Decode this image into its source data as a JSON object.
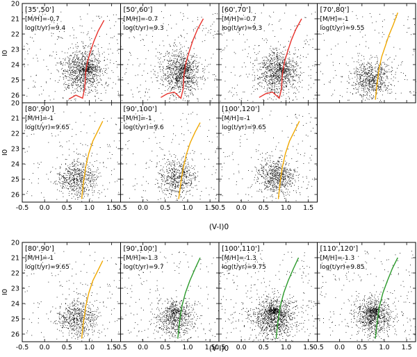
{
  "chart_data": [
    {
      "type": "scatter",
      "group": "top",
      "x_range": [
        -0.5,
        1.7
      ],
      "y_range": [
        26.5,
        20.0
      ],
      "xlabel": "(V-I)0",
      "ylabel": "I0",
      "x_ticks": [
        "-0.5",
        "0.0",
        "0.5",
        "1.0",
        "1.5"
      ],
      "y_ticks": [
        "20",
        "21",
        "22",
        "23",
        "24",
        "25",
        "26"
      ],
      "panels": [
        {
          "id": "p35-50",
          "label_range": "[35',50']",
          "label_mh": "[M/H]=-0.7",
          "label_age": "log(t/yr)=9.4",
          "isochrone_color": "#e8302a",
          "isochrone": [
            [
              0.55,
              26.25
            ],
            [
              0.7,
              26.0
            ],
            [
              0.85,
              26.2
            ],
            [
              0.9,
              25.5
            ],
            [
              0.92,
              24.5
            ],
            [
              0.96,
              23.8
            ],
            [
              1.02,
              23.2
            ],
            [
              1.1,
              22.5
            ],
            [
              1.2,
              21.8
            ],
            [
              1.33,
              21.1
            ]
          ],
          "cloud": {
            "center": [
              0.85,
              24.4
            ],
            "spread": [
              0.4,
              1.2
            ],
            "count": 900,
            "seed": 11
          },
          "clump": {
            "center": [
              0.95,
              24.3
            ],
            "spread": [
              0.07,
              0.13
            ],
            "count": 90
          }
        },
        {
          "id": "p50-60",
          "label_range": "[50',60']",
          "label_mh": "[M/H]=-0.7",
          "label_age": "log(t/yr)=9.3",
          "isochrone_color": "#e8302a",
          "isochrone": [
            [
              0.4,
              26.15
            ],
            [
              0.55,
              25.9
            ],
            [
              0.7,
              25.8
            ],
            [
              0.85,
              26.2
            ],
            [
              0.9,
              25.6
            ],
            [
              0.92,
              24.6
            ],
            [
              0.97,
              23.8
            ],
            [
              1.04,
              23.1
            ],
            [
              1.12,
              22.4
            ],
            [
              1.22,
              21.7
            ],
            [
              1.35,
              21.0
            ]
          ],
          "cloud": {
            "center": [
              0.82,
              24.5
            ],
            "spread": [
              0.4,
              1.2
            ],
            "count": 850,
            "seed": 23
          },
          "clump": {
            "center": [
              0.93,
              24.3
            ],
            "spread": [
              0.07,
              0.13
            ],
            "count": 80
          }
        },
        {
          "id": "p60-70",
          "label_range": "[60',70']",
          "label_mh": "[M/H]=-0.7",
          "label_age": "log(t/yr)=9.3",
          "isochrone_color": "#e8302a",
          "isochrone": [
            [
              0.4,
              26.15
            ],
            [
              0.55,
              25.9
            ],
            [
              0.7,
              25.8
            ],
            [
              0.85,
              26.2
            ],
            [
              0.9,
              25.6
            ],
            [
              0.92,
              24.6
            ],
            [
              0.97,
              23.8
            ],
            [
              1.04,
              23.1
            ],
            [
              1.12,
              22.4
            ],
            [
              1.22,
              21.7
            ],
            [
              1.35,
              21.0
            ]
          ],
          "cloud": {
            "center": [
              0.82,
              24.5
            ],
            "spread": [
              0.4,
              1.2
            ],
            "count": 850,
            "seed": 37
          },
          "clump": {
            "center": [
              0.93,
              24.3
            ],
            "spread": [
              0.07,
              0.13
            ],
            "count": 80
          }
        },
        {
          "id": "p70-80",
          "label_range": "[70',80']",
          "label_mh": "[M/H]=-1",
          "label_age": "log(t/yr)=9.55",
          "isochrone_color": "#f0a800",
          "isochrone": [
            [
              0.8,
              26.3
            ],
            [
              0.84,
              25.2
            ],
            [
              0.88,
              24.3
            ],
            [
              0.94,
              23.5
            ],
            [
              1.02,
              22.8
            ],
            [
              1.1,
              22.1
            ],
            [
              1.2,
              21.4
            ],
            [
              1.3,
              20.6
            ]
          ],
          "cloud": {
            "center": [
              0.72,
              24.9
            ],
            "spread": [
              0.4,
              1.0
            ],
            "count": 650,
            "seed": 51
          },
          "clump": null
        },
        {
          "id": "p80-90",
          "label_range": "[80',90']",
          "label_mh": "[M/H]=-1",
          "label_age": "log(t/yr)=9.65",
          "isochrone_color": "#f0a800",
          "isochrone": [
            [
              0.83,
              26.3
            ],
            [
              0.87,
              25.2
            ],
            [
              0.92,
              24.2
            ],
            [
              0.99,
              23.3
            ],
            [
              1.08,
              22.5
            ],
            [
              1.2,
              21.8
            ],
            [
              1.3,
              21.2
            ]
          ],
          "cloud": {
            "center": [
              0.72,
              24.9
            ],
            "spread": [
              0.4,
              1.0
            ],
            "count": 600,
            "seed": 67
          },
          "clump": null
        },
        {
          "id": "p90-100",
          "label_range": "[90',100']",
          "label_mh": "[M/H]=-1",
          "label_age": "log(t/yr)=9.6",
          "isochrone_color": "#f0a800",
          "isochrone": [
            [
              0.8,
              26.3
            ],
            [
              0.85,
              25.2
            ],
            [
              0.9,
              24.3
            ],
            [
              0.97,
              23.4
            ],
            [
              1.06,
              22.6
            ],
            [
              1.17,
              21.9
            ],
            [
              1.28,
              21.3
            ]
          ],
          "cloud": {
            "center": [
              0.75,
              24.9
            ],
            "spread": [
              0.4,
              1.0
            ],
            "count": 550,
            "seed": 79
          },
          "clump": null
        },
        {
          "id": "p100-120",
          "label_range": "[100',120']",
          "label_mh": "[M/H]=-1",
          "label_age": "log(t/yr)=9.65",
          "isochrone_color": "#f0a800",
          "isochrone": [
            [
              0.83,
              26.3
            ],
            [
              0.87,
              25.2
            ],
            [
              0.92,
              24.2
            ],
            [
              0.99,
              23.3
            ],
            [
              1.08,
              22.5
            ],
            [
              1.2,
              21.8
            ],
            [
              1.3,
              21.2
            ]
          ],
          "cloud": {
            "center": [
              0.78,
              24.8
            ],
            "spread": [
              0.4,
              1.0
            ],
            "count": 650,
            "seed": 97
          },
          "clump": null
        }
      ]
    },
    {
      "type": "scatter",
      "group": "bottom",
      "x_range": [
        -0.5,
        1.7
      ],
      "y_range": [
        26.5,
        20.0
      ],
      "xlabel": "(V-I)0",
      "ylabel": "I0",
      "x_ticks": [
        "-0.5",
        "0.0",
        "0.5",
        "1.0",
        "1.5"
      ],
      "y_ticks": [
        "20",
        "21",
        "22",
        "23",
        "24",
        "25",
        "26"
      ],
      "panels": [
        {
          "id": "q80-90",
          "label_range": "[80',90']",
          "label_mh": "[M/H]=-1",
          "label_age": "log(t/yr)=9.65",
          "isochrone_color": "#f0a800",
          "isochrone": [
            [
              0.83,
              26.3
            ],
            [
              0.87,
              25.2
            ],
            [
              0.92,
              24.2
            ],
            [
              0.99,
              23.3
            ],
            [
              1.08,
              22.5
            ],
            [
              1.2,
              21.8
            ],
            [
              1.3,
              21.2
            ]
          ],
          "cloud": {
            "center": [
              0.72,
              24.9
            ],
            "spread": [
              0.4,
              1.0
            ],
            "count": 600,
            "seed": 67
          },
          "clump": null
        },
        {
          "id": "q90-100",
          "label_range": "[90',100']",
          "label_mh": "[M/H]=-1.3",
          "label_age": "log(t/yr)=9.7",
          "isochrone_color": "#2a9a2a",
          "isochrone": [
            [
              0.78,
              26.3
            ],
            [
              0.82,
              25.2
            ],
            [
              0.87,
              24.2
            ],
            [
              0.95,
              23.3
            ],
            [
              1.05,
              22.5
            ],
            [
              1.17,
              21.7
            ],
            [
              1.28,
              21.0
            ]
          ],
          "cloud": {
            "center": [
              0.72,
              24.9
            ],
            "spread": [
              0.4,
              1.0
            ],
            "count": 650,
            "seed": 113
          },
          "clump": {
            "center": [
              0.72,
              24.45
            ],
            "spread": [
              0.07,
              0.1
            ],
            "count": 60
          }
        },
        {
          "id": "q100-110",
          "label_range": "[100',110']",
          "label_mh": "[M/H]=-1.3",
          "label_age": "log(t/yr)=9.75",
          "isochrone_color": "#2a9a2a",
          "isochrone": [
            [
              0.78,
              26.3
            ],
            [
              0.82,
              25.2
            ],
            [
              0.87,
              24.2
            ],
            [
              0.95,
              23.3
            ],
            [
              1.05,
              22.5
            ],
            [
              1.17,
              21.7
            ],
            [
              1.28,
              21.0
            ]
          ],
          "cloud": {
            "center": [
              0.72,
              24.9
            ],
            "spread": [
              0.45,
              1.1
            ],
            "count": 1000,
            "seed": 131
          },
          "clump": {
            "center": [
              0.72,
              24.45
            ],
            "spread": [
              0.08,
              0.1
            ],
            "count": 150
          }
        },
        {
          "id": "q110-120",
          "label_range": "[110',120']",
          "label_mh": "[M/H]=-1.3",
          "label_age": "log(t/yr)=9.85",
          "isochrone_color": "#2a9a2a",
          "isochrone": [
            [
              0.8,
              26.3
            ],
            [
              0.84,
              25.2
            ],
            [
              0.89,
              24.2
            ],
            [
              0.97,
              23.3
            ],
            [
              1.07,
              22.5
            ],
            [
              1.18,
              21.7
            ],
            [
              1.3,
              21.0
            ]
          ],
          "cloud": {
            "center": [
              0.75,
              24.8
            ],
            "spread": [
              0.4,
              1.0
            ],
            "count": 800,
            "seed": 149
          },
          "clump": {
            "center": [
              0.75,
              24.45
            ],
            "spread": [
              0.07,
              0.1
            ],
            "count": 110
          }
        }
      ]
    }
  ]
}
